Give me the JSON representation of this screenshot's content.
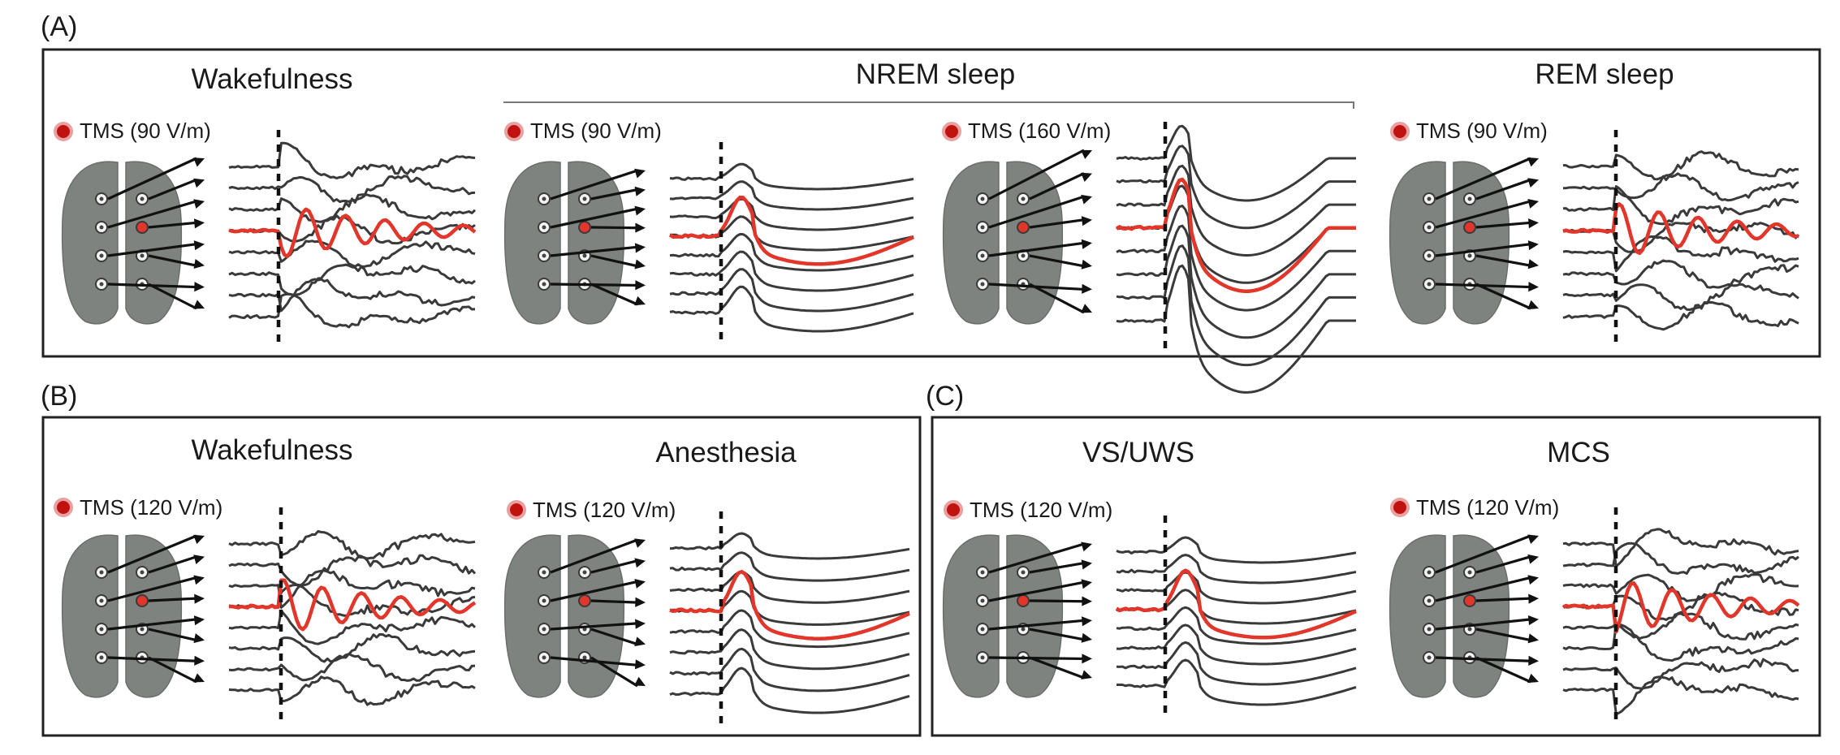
{
  "figure": {
    "colors": {
      "frame": "#222222",
      "brain": "#7f837f",
      "trace": "#3a3a3a",
      "highlight": "#e2362a",
      "tms_dot": "#c0130f"
    },
    "sections": [
      {
        "letter": "(A)",
        "panels": [
          {
            "title": "Wakefulness",
            "tms": "TMS (90 V/m)",
            "response": "complex"
          },
          {
            "title": "",
            "tms": "TMS (90 V/m)",
            "response": "slow-wave"
          },
          {
            "title": "",
            "tms": "TMS (160 V/m)",
            "response": "large-slow-wave"
          },
          {
            "title": "REM sleep",
            "tms": "TMS (90 V/m)",
            "response": "complex"
          }
        ],
        "group_label": "NREM sleep"
      },
      {
        "letter": "(B)",
        "panels": [
          {
            "title": "Wakefulness",
            "tms": "TMS (120 V/m)",
            "response": "complex"
          },
          {
            "title": "Anesthesia",
            "tms": "TMS (120 V/m)",
            "response": "slow-wave"
          }
        ]
      },
      {
        "letter": "(C)",
        "panels": [
          {
            "title": "VS/UWS",
            "tms": "TMS (120 V/m)",
            "response": "slow-wave"
          },
          {
            "title": "MCS",
            "tms": "TMS (120 V/m)",
            "response": "complex"
          }
        ]
      }
    ]
  }
}
